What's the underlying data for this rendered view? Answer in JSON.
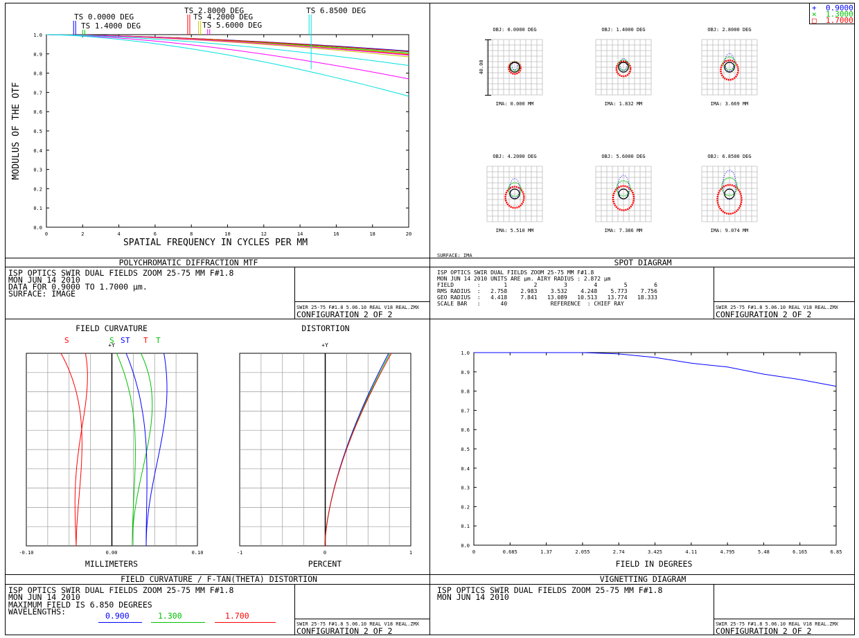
{
  "mtf": {
    "title": "POLYCHROMATIC DIFFRACTION MTF",
    "ylabel": "MODULUS OF THE OTF",
    "xlabel": "SPATIAL FREQUENCY IN CYCLES PER MM",
    "x_ticks": [
      "0",
      "2",
      "4",
      "6",
      "8",
      "10",
      "12",
      "14",
      "16",
      "18",
      "20"
    ],
    "y_ticks": [
      "0.0",
      "0.1",
      "0.2",
      "0.3",
      "0.4",
      "0.5",
      "0.6",
      "0.7",
      "0.8",
      "0.9",
      "1.0"
    ],
    "field_labels": [
      {
        "text": "TS 0.0000 DEG",
        "freq": 1.5,
        "color": "#0000ff"
      },
      {
        "text": "TS 1.4000 DEG",
        "freq": 2.0,
        "color": "#00c000"
      },
      {
        "text": "TS 2.8000 DEG",
        "freq": 7.8,
        "color": "#ff0000"
      },
      {
        "text": "TS 4.2000 DEG",
        "freq": 8.4,
        "color": "#c8c800"
      },
      {
        "text": "TS 5.6000 DEG",
        "freq": 8.9,
        "color": "#ff00ff"
      },
      {
        "text": "TS 6.8500 DEG",
        "freq": 14.5,
        "color": "#00e0e0"
      }
    ],
    "info": [
      "ISP OPTICS SWIR DUAL FIELDS ZOOM 25-75 MM F#1.8",
      "MON JUN 14 2010",
      "DATA FOR 0.9000 TO 1.7000 µm.",
      "SURFACE: IMAGE"
    ],
    "file": "SWIR 25-75 F#1.8 5.06.10 REAL V18 REAL.ZMX",
    "config": "CONFIGURATION 2 OF 2"
  },
  "spot": {
    "title": "SPOT DIAGRAM",
    "legend": [
      {
        "symbol": "+",
        "label": "0.9000",
        "color": "#0000ff"
      },
      {
        "symbol": "×",
        "label": "1.3000",
        "color": "#00c000"
      },
      {
        "symbol": "□",
        "label": "1.7000",
        "color": "#ff0000"
      }
    ],
    "fields": [
      {
        "obj": "OBJ: 0.0000 DEG",
        "ima": "IMA: 0.000 MM",
        "spread": 0.2
      },
      {
        "obj": "OBJ: 1.4000 DEG",
        "ima": "IMA: 1.832 MM",
        "spread": 0.4
      },
      {
        "obj": "OBJ: 2.8000 DEG",
        "ima": "IMA: 3.669 MM",
        "spread": 0.7
      },
      {
        "obj": "OBJ: 4.2000 DEG",
        "ima": "IMA: 5.510 MM",
        "spread": 0.8
      },
      {
        "obj": "OBJ: 5.6000 DEG",
        "ima": "IMA: 7.386 MM",
        "spread": 1.0
      },
      {
        "obj": "OBJ: 6.8500 DEG",
        "ima": "IMA: 9.074 MM",
        "spread": 1.3
      }
    ],
    "scale_label": "40.00",
    "surface": "SURFACE: IMA",
    "info": [
      "ISP OPTICS SWIR DUAL FIELDS ZOOM 25-75 MM F#1.8",
      "MON JUN 14 2010  UNITS ARE µm.  AIRY RADIUS : 2.872 µm",
      "FIELD       :       1        2        3        4        5        6",
      "RMS RADIUS  :   2.758    2.983    3.532    4.248    5.773    7.756",
      "GEO RADIUS  :   4.418    7.841   13.089   10.513   13.774   18.333",
      "SCALE BAR   :      40             REFERENCE  : CHIEF RAY"
    ],
    "file": "SWIR 25-75 F#1.8 5.06.10 REAL V18 REAL.ZMX",
    "config": "CONFIGURATION 2 OF 2"
  },
  "fc": {
    "title": "FIELD CURVATURE / F-TAN(THETA) DISTORTION",
    "fc_title": "FIELD CURVATURE",
    "dist_title": "DISTORTION",
    "fc_xlabel": "MILLIMETERS",
    "dist_xlabel": "PERCENT",
    "fc_ticks": [
      "-0.10",
      "0.00",
      "0.10"
    ],
    "dist_ticks": [
      "-1",
      "0",
      "1"
    ],
    "y_axis_label": "+Y",
    "curve_labels": [
      {
        "text": "S",
        "color": "#ff0000"
      },
      {
        "text": "S",
        "color": "#00c000"
      },
      {
        "text": "S",
        "color": "#0000ff"
      },
      {
        "text": "T",
        "color": "#ff0000"
      },
      {
        "text": "T",
        "color": "#00c000"
      },
      {
        "text": "T",
        "color": "#0000ff"
      }
    ],
    "info": [
      "ISP OPTICS SWIR DUAL FIELDS ZOOM 25-75 MM F#1.8",
      "MON JUN 14 2010",
      "MAXIMUM FIELD IS 6.850 DEGREES",
      "WAVELENGTHS:"
    ],
    "wavelengths": [
      {
        "label": "0.900",
        "color": "#0000ff"
      },
      {
        "label": "1.300",
        "color": "#00c000"
      },
      {
        "label": "1.700",
        "color": "#ff0000"
      }
    ],
    "file": "SWIR 25-75 F#1.8 5.06.10 REAL V18 REAL.ZMX",
    "config": "CONFIGURATION 2 OF 2"
  },
  "vig": {
    "title": "VIGNETTING DIAGRAM",
    "xlabel": "FIELD IN DEGREES",
    "x_ticks": [
      "0",
      "0.685",
      "1.37",
      "2.055",
      "2.74",
      "3.425",
      "4.11",
      "4.795",
      "5.48",
      "6.165",
      "6.85"
    ],
    "y_ticks": [
      "0.0",
      "0.1",
      "0.2",
      "0.3",
      "0.4",
      "0.5",
      "0.6",
      "0.7",
      "0.8",
      "0.9",
      "1.0"
    ],
    "info": [
      "ISP OPTICS SWIR DUAL FIELDS ZOOM 25-75 MM F#1.8",
      "MON JUN 14 2010"
    ],
    "file": "SWIR 25-75 F#1.8 5.06.10 REAL V18 REAL.ZMX",
    "config": "CONFIGURATION 2 OF 2"
  },
  "chart_data": [
    {
      "type": "line",
      "title": "POLYCHROMATIC DIFFRACTION MTF",
      "xlabel": "SPATIAL FREQUENCY IN CYCLES PER MM",
      "ylabel": "MODULUS OF THE OTF",
      "xlim": [
        0,
        20
      ],
      "ylim": [
        0,
        1
      ],
      "x": [
        0,
        20
      ],
      "series": [
        {
          "name": "TS 0.0000 DEG",
          "color": "#0000ff",
          "values": [
            1.0,
            0.915
          ]
        },
        {
          "name": "TS 0.0000 DEG",
          "color": "#0000ff",
          "values": [
            1.0,
            0.912
          ]
        },
        {
          "name": "TS 1.4000 DEG",
          "color": "#00c000",
          "values": [
            1.0,
            0.912
          ]
        },
        {
          "name": "TS 1.4000 DEG",
          "color": "#00c000",
          "values": [
            1.0,
            0.905
          ]
        },
        {
          "name": "TS 2.8000 DEG",
          "color": "#ff0000",
          "values": [
            1.0,
            0.912
          ]
        },
        {
          "name": "TS 2.8000 DEG",
          "color": "#ff0000",
          "values": [
            1.0,
            0.897
          ]
        },
        {
          "name": "TS 4.2000 DEG",
          "color": "#c8c800",
          "values": [
            1.0,
            0.9
          ]
        },
        {
          "name": "TS 4.2000 DEG",
          "color": "#c8c800",
          "values": [
            1.0,
            0.885
          ]
        },
        {
          "name": "TS 5.6000 DEG",
          "color": "#ff00ff",
          "values": [
            1.0,
            0.893
          ]
        },
        {
          "name": "TS 5.6000 DEG",
          "color": "#ff00ff",
          "values": [
            1.0,
            0.77
          ]
        },
        {
          "name": "TS 6.8500 DEG",
          "color": "#00e0e0",
          "values": [
            1.0,
            0.84
          ]
        },
        {
          "name": "TS 6.8500 DEG",
          "color": "#00e0e0",
          "values": [
            1.0,
            0.68
          ]
        }
      ]
    },
    {
      "type": "line",
      "title": "VIGNETTING DIAGRAM",
      "xlabel": "FIELD IN DEGREES",
      "xlim": [
        0,
        6.85
      ],
      "ylim": [
        0,
        1
      ],
      "x": [
        0,
        0.685,
        1.37,
        2.055,
        2.74,
        3.425,
        4.11,
        4.795,
        5.48,
        6.165,
        6.85
      ],
      "series": [
        {
          "color": "#0000ff",
          "values": [
            1.0,
            1.0,
            1.0,
            1.0,
            0.993,
            0.975,
            0.945,
            0.925,
            0.888,
            0.86,
            0.825
          ]
        }
      ]
    }
  ]
}
